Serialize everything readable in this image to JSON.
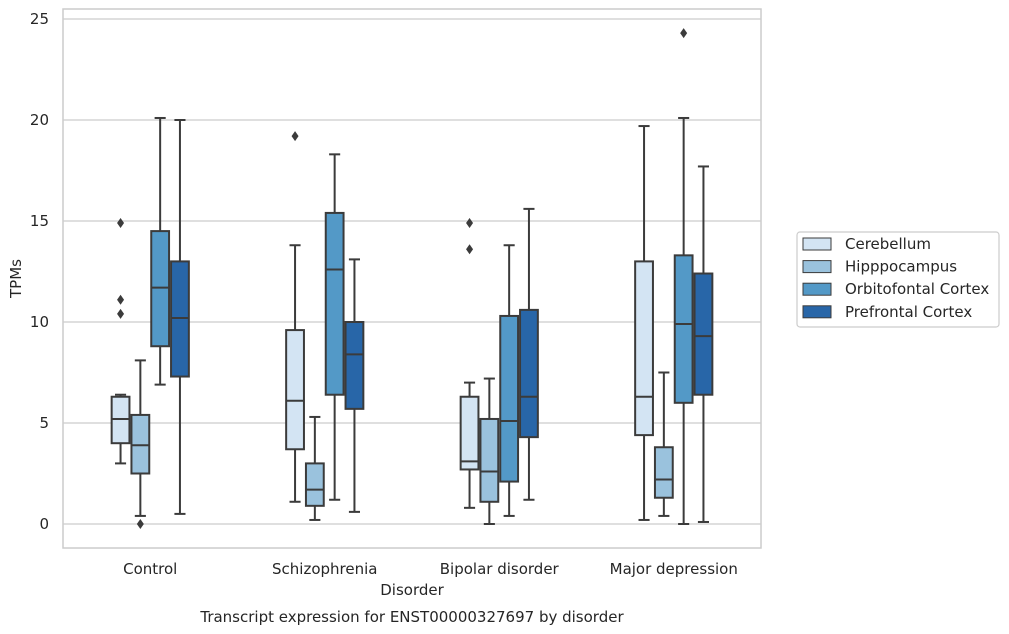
{
  "chart_data": {
    "type": "box",
    "xlabel": "Disorder",
    "ylabel": "TPMs",
    "caption": "Transcript expression for ENST00000327697 by disorder",
    "ylim": [
      -1.2,
      25.5
    ],
    "yticks": [
      0,
      5,
      10,
      15,
      20,
      25
    ],
    "grid": "horizontal",
    "legend_position": "right",
    "categories": [
      "Control",
      "Schizophrenia",
      "Bipolar disorder",
      "Major depression"
    ],
    "series": [
      {
        "name": "Cerebellum",
        "color": "#d3e4f3",
        "boxes": [
          {
            "whisker_low": 3.0,
            "q1": 4.0,
            "median": 5.2,
            "q3": 6.3,
            "whisker_high": 6.4,
            "outliers": [
              14.9,
              11.1,
              10.4
            ]
          },
          {
            "whisker_low": 1.1,
            "q1": 3.7,
            "median": 6.1,
            "q3": 9.6,
            "whisker_high": 13.8,
            "outliers": [
              19.2
            ]
          },
          {
            "whisker_low": 0.8,
            "q1": 2.7,
            "median": 3.1,
            "q3": 6.3,
            "whisker_high": 7.0,
            "outliers": [
              14.9,
              13.6
            ]
          },
          {
            "whisker_low": 0.2,
            "q1": 4.4,
            "median": 6.3,
            "q3": 13.0,
            "whisker_high": 19.7,
            "outliers": []
          }
        ]
      },
      {
        "name": "Hipppocampus",
        "color": "#9ac2dd",
        "boxes": [
          {
            "whisker_low": 0.4,
            "q1": 2.5,
            "median": 3.9,
            "q3": 5.4,
            "whisker_high": 8.1,
            "outliers": [
              0.0
            ]
          },
          {
            "whisker_low": 0.2,
            "q1": 0.9,
            "median": 1.7,
            "q3": 3.0,
            "whisker_high": 5.3,
            "outliers": []
          },
          {
            "whisker_low": 0.0,
            "q1": 1.1,
            "median": 2.6,
            "q3": 5.2,
            "whisker_high": 7.2,
            "outliers": []
          },
          {
            "whisker_low": 0.4,
            "q1": 1.3,
            "median": 2.2,
            "q3": 3.8,
            "whisker_high": 7.5,
            "outliers": []
          }
        ]
      },
      {
        "name": "Orbitofontal Cortex",
        "color": "#5399c7",
        "boxes": [
          {
            "whisker_low": 6.9,
            "q1": 8.8,
            "median": 11.7,
            "q3": 14.5,
            "whisker_high": 20.1,
            "outliers": []
          },
          {
            "whisker_low": 1.2,
            "q1": 6.4,
            "median": 12.6,
            "q3": 15.4,
            "whisker_high": 18.3,
            "outliers": []
          },
          {
            "whisker_low": 0.4,
            "q1": 2.1,
            "median": 5.1,
            "q3": 10.3,
            "whisker_high": 13.8,
            "outliers": []
          },
          {
            "whisker_low": 0.0,
            "q1": 6.0,
            "median": 9.9,
            "q3": 13.3,
            "whisker_high": 20.1,
            "outliers": [
              24.3
            ]
          }
        ]
      },
      {
        "name": "Prefrontal Cortex",
        "color": "#2866a8",
        "boxes": [
          {
            "whisker_low": 0.5,
            "q1": 7.3,
            "median": 10.2,
            "q3": 13.0,
            "whisker_high": 20.0,
            "outliers": []
          },
          {
            "whisker_low": 0.6,
            "q1": 5.7,
            "median": 8.4,
            "q3": 10.0,
            "whisker_high": 13.1,
            "outliers": []
          },
          {
            "whisker_low": 1.2,
            "q1": 4.3,
            "median": 6.3,
            "q3": 10.6,
            "whisker_high": 15.6,
            "outliers": []
          },
          {
            "whisker_low": 0.1,
            "q1": 6.4,
            "median": 9.3,
            "q3": 12.4,
            "whisker_high": 17.7,
            "outliers": []
          }
        ]
      }
    ]
  }
}
